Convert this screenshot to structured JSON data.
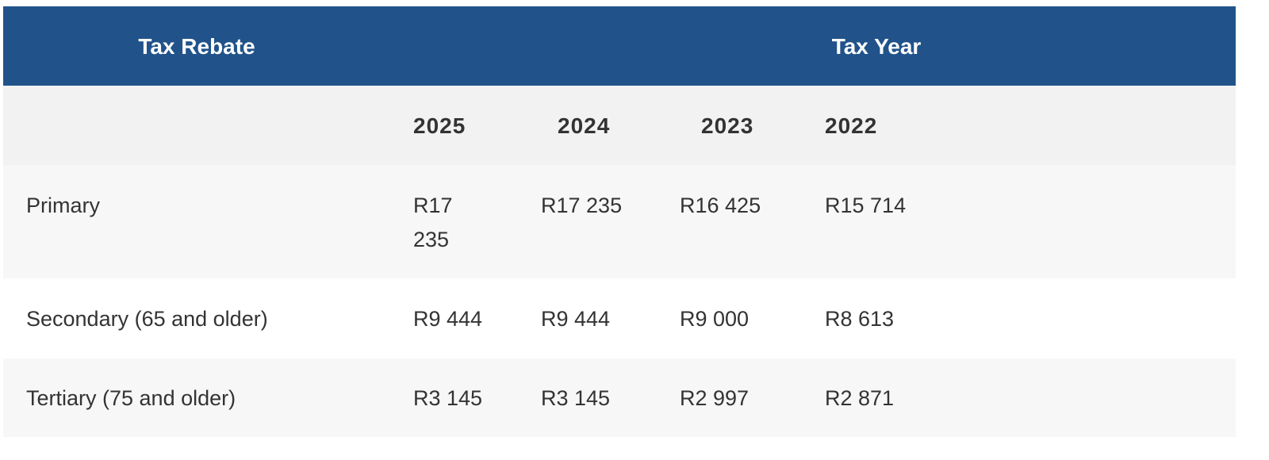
{
  "table": {
    "header": [
      "Tax Rebate",
      "Tax Year"
    ],
    "columns": [
      "2025",
      "2024",
      "2023",
      "2022"
    ],
    "rows": [
      [
        "Primary",
        "R17 235",
        "R17 235",
        "R16 425",
        "R15 714"
      ],
      [
        "Secondary (65 and older)",
        "R9 444",
        "R9 444",
        "R9 000",
        "R8 613"
      ],
      [
        "Tertiary (75 and older)",
        "R3 145",
        "R3 145",
        "R2 997",
        "R2 871"
      ]
    ]
  }
}
